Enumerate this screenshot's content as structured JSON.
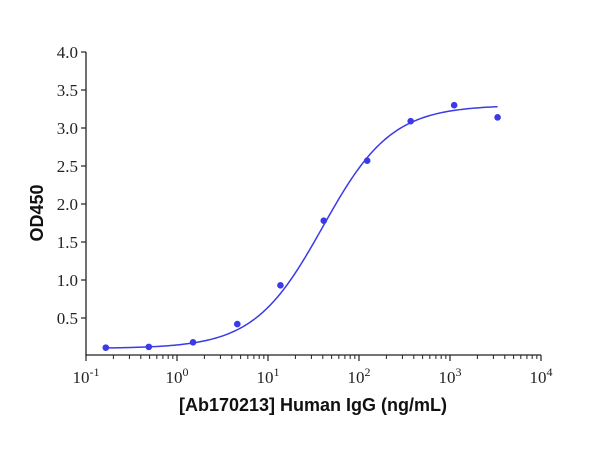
{
  "chart_data": {
    "type": "scatter",
    "title": "",
    "xlabel": "[Ab170213] Human IgG (ng/mL)",
    "ylabel": "OD450",
    "xscale": "log",
    "xlim": [
      0.1,
      10000
    ],
    "ylim": [
      0,
      4.0
    ],
    "x_ticks": [
      {
        "base": "10",
        "exp": "-1",
        "value": 0.1
      },
      {
        "base": "10",
        "exp": "0",
        "value": 1
      },
      {
        "base": "10",
        "exp": "1",
        "value": 10
      },
      {
        "base": "10",
        "exp": "2",
        "value": 100
      },
      {
        "base": "10",
        "exp": "3",
        "value": 1000
      },
      {
        "base": "10",
        "exp": "4",
        "value": 10000
      }
    ],
    "y_ticks": [
      "0.5",
      "1.0",
      "1.5",
      "2.0",
      "2.5",
      "3.0",
      "3.5",
      "4.0"
    ],
    "grid": false,
    "legend": null,
    "series": [
      {
        "name": "Human IgG",
        "color": "#3a3ae8",
        "x": [
          0.165,
          0.49,
          1.5,
          4.6,
          13.7,
          41,
          123,
          370,
          1111,
          3333
        ],
        "y": [
          0.11,
          0.12,
          0.18,
          0.42,
          0.93,
          1.78,
          2.57,
          3.09,
          3.3,
          3.14
        ]
      }
    ],
    "fit": {
      "type": "4PL",
      "color": "#3a3ae8",
      "bottom": 0.1,
      "top": 3.3,
      "ec50": 40,
      "hill": 1.15,
      "x_range": [
        0.165,
        3333
      ]
    }
  }
}
